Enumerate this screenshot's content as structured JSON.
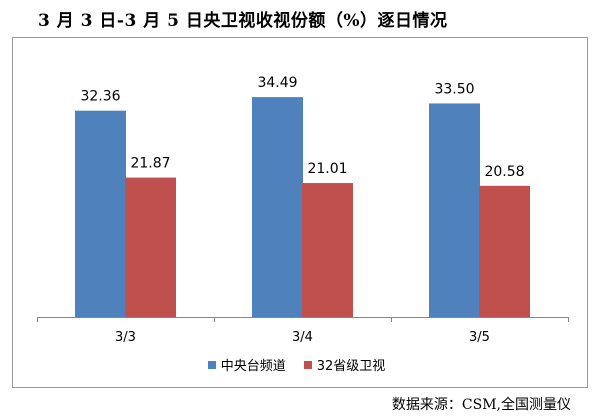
{
  "title": "3 月 3 日-3 月 5 日央卫视收视份额（%）逐日情况",
  "source": "数据来源：CSM,全国测量仪",
  "colors": {
    "series1": "#4f81bd",
    "series2": "#c0504d",
    "axis": "#868686",
    "frame": "#9a9a9a"
  },
  "chart_data": {
    "type": "bar",
    "title": "3 月 3 日-3 月 5 日央卫视收视份额（%）逐日情况",
    "categories": [
      "3/3",
      "3/4",
      "3/5"
    ],
    "series": [
      {
        "name": "中央台频道",
        "values": [
          32.36,
          34.49,
          33.5
        ]
      },
      {
        "name": "32省级卫视",
        "values": [
          21.87,
          21.01,
          20.58
        ]
      }
    ],
    "ylim": [
      0,
      40
    ],
    "grid": false,
    "legend": "bottom",
    "data_labels": true
  }
}
